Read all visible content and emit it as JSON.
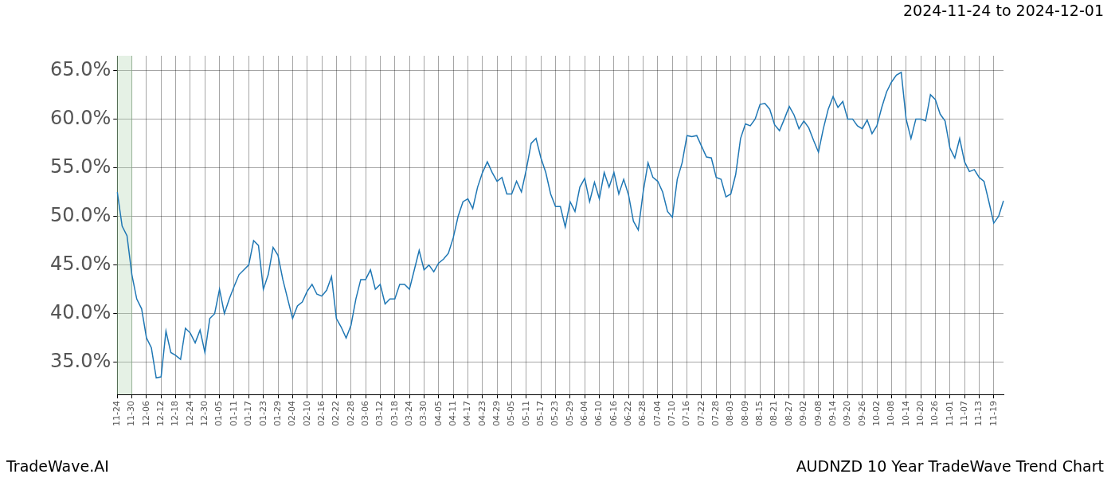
{
  "chart_data": {
    "type": "line",
    "title": "2024-11-24 to 2024-12-01",
    "annotations": [
      "TradeWave.AI",
      "AUDNZD 10 Year TradeWave Trend Chart"
    ],
    "highlight": [
      "11-24",
      "11-30"
    ],
    "categories": [
      "11-24",
      null,
      null,
      "11-30",
      null,
      null,
      "12-06",
      null,
      null,
      "12-12",
      null,
      null,
      "12-18",
      null,
      null,
      "12-24",
      null,
      null,
      "12-30",
      null,
      null,
      "01-05",
      null,
      null,
      "01-11",
      null,
      null,
      "01-17",
      null,
      null,
      "01-23",
      null,
      null,
      "01-29",
      null,
      null,
      "02-04",
      null,
      null,
      "02-10",
      null,
      null,
      "02-16",
      null,
      null,
      "02-22",
      null,
      null,
      "02-28",
      null,
      null,
      "03-06",
      null,
      null,
      "03-12",
      null,
      null,
      "03-18",
      null,
      null,
      "03-24",
      null,
      null,
      "03-30",
      null,
      null,
      "04-05",
      null,
      null,
      "04-11",
      null,
      null,
      "04-17",
      null,
      null,
      "04-23",
      null,
      null,
      "04-29",
      null,
      null,
      "05-05",
      null,
      null,
      "05-11",
      null,
      null,
      "05-17",
      null,
      null,
      "05-23",
      null,
      null,
      "05-29",
      null,
      null,
      "06-04",
      null,
      null,
      "06-10",
      null,
      null,
      "06-16",
      null,
      null,
      "06-22",
      null,
      null,
      "06-28",
      null,
      null,
      "07-04",
      null,
      null,
      "07-10",
      null,
      null,
      "07-16",
      null,
      null,
      "07-22",
      null,
      null,
      "07-28",
      null,
      null,
      "08-03",
      null,
      null,
      "08-09",
      null,
      null,
      "08-15",
      null,
      null,
      "08-21",
      null,
      null,
      "08-27",
      null,
      null,
      "09-02",
      null,
      null,
      "09-08",
      null,
      null,
      "09-14",
      null,
      null,
      "09-20",
      null,
      null,
      "09-26",
      null,
      null,
      "10-02",
      null,
      null,
      "10-08",
      null,
      null,
      "10-14",
      null,
      null,
      "10-20",
      null,
      null,
      "10-26",
      null,
      null,
      "11-01",
      null,
      null,
      "11-07",
      null,
      null,
      "11-13",
      null,
      null,
      "11-19",
      null,
      null
    ],
    "values": [
      52.5,
      49.0,
      48.0,
      44.0,
      41.5,
      40.5,
      37.5,
      36.5,
      33.4,
      33.5,
      38.2,
      36.0,
      35.7,
      35.3,
      38.5,
      38.0,
      37.0,
      38.3,
      36.0,
      39.5,
      40.0,
      42.5,
      40.0,
      41.5,
      42.8,
      44.0,
      44.5,
      45.0,
      47.5,
      47.0,
      42.5,
      44.0,
      46.8,
      46.0,
      43.5,
      41.5,
      39.5,
      40.8,
      41.2,
      42.3,
      43.0,
      42.0,
      41.8,
      42.4,
      43.8,
      39.5,
      38.6,
      37.5,
      38.8,
      41.5,
      43.5,
      43.5,
      44.5,
      42.5,
      43.0,
      41.0,
      41.5,
      41.5,
      43.0,
      43.0,
      42.5,
      44.5,
      46.5,
      44.5,
      45.0,
      44.3,
      45.2,
      45.6,
      46.2,
      47.8,
      50.0,
      51.5,
      51.8,
      50.8,
      53.0,
      54.5,
      55.6,
      54.5,
      53.6,
      54.0,
      52.3,
      52.3,
      53.6,
      52.5,
      54.8,
      57.5,
      58.0,
      56.0,
      54.5,
      52.3,
      51.0,
      51.0,
      48.9,
      51.5,
      50.5,
      53.0,
      53.9,
      51.5,
      53.5,
      51.8,
      54.5,
      53.0,
      54.5,
      52.3,
      53.8,
      52.2,
      49.5,
      48.6,
      52.5,
      55.5,
      54.0,
      53.6,
      52.5,
      50.5,
      49.9,
      53.8,
      55.5,
      58.3,
      58.2,
      58.3,
      57.2,
      56.1,
      56.0,
      54.0,
      53.8,
      52.0,
      52.3,
      54.3,
      58.0,
      59.5,
      59.3,
      60.0,
      61.5,
      61.6,
      61.0,
      59.4,
      58.8,
      60.0,
      61.3,
      60.4,
      59.0,
      59.8,
      59.1,
      57.8,
      56.6,
      59.0,
      61.0,
      62.3,
      61.2,
      61.8,
      60.0,
      60.0,
      59.3,
      59.0,
      59.9,
      58.5,
      59.3,
      61.2,
      62.8,
      63.8,
      64.5,
      64.8,
      60.0,
      58.0,
      60.0,
      60.0,
      59.8,
      62.5,
      62.0,
      60.5,
      59.8,
      57.0,
      56.0,
      58.0,
      55.6,
      54.6,
      54.8,
      54.0,
      53.6,
      51.5,
      49.3,
      50.0,
      51.6
    ],
    "color": "#1f77b4",
    "ylim": [
      31.7,
      66.5
    ],
    "yticks": [
      {
        "value": 35,
        "label": "35.0%"
      },
      {
        "value": 40,
        "label": "40.0%"
      },
      {
        "value": 45,
        "label": "45.0%"
      },
      {
        "value": 50,
        "label": "50.0%"
      },
      {
        "value": 55,
        "label": "55.0%"
      },
      {
        "value": 60,
        "label": "60.0%"
      },
      {
        "value": 65,
        "label": "65.0%"
      }
    ],
    "grid": true
  }
}
